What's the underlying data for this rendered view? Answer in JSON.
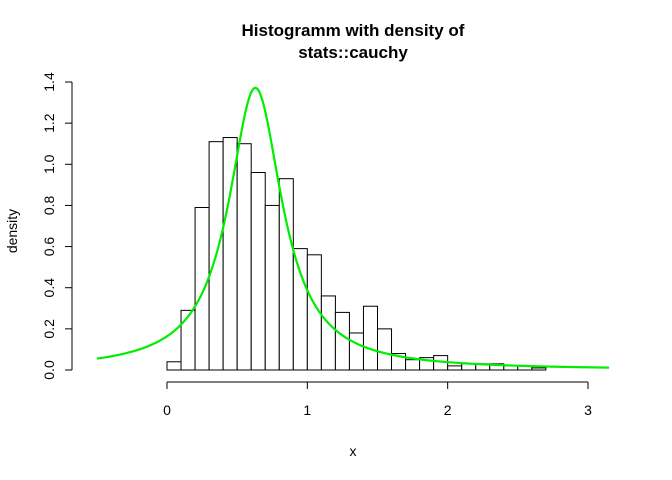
{
  "chart_data": {
    "type": "bar",
    "title_line1": "Histogramm with density of",
    "title_line2": "stats::cauchy",
    "xlabel": "x",
    "ylabel": "density",
    "xlim": [
      -0.5,
      3.15
    ],
    "ylim": [
      0,
      1.4
    ],
    "x_ticks": [
      "0",
      "1",
      "2",
      "3"
    ],
    "y_ticks": [
      "0.0",
      "0.2",
      "0.4",
      "0.6",
      "0.8",
      "1.0",
      "1.2",
      "1.4"
    ],
    "grid": false,
    "bin_width": 0.1,
    "histogram": {
      "bin_starts": [
        0.0,
        0.1,
        0.2,
        0.3,
        0.4,
        0.5,
        0.6,
        0.7,
        0.8,
        0.9,
        1.0,
        1.1,
        1.2,
        1.3,
        1.4,
        1.5,
        1.6,
        1.7,
        1.8,
        1.9,
        2.0,
        2.1,
        2.2,
        2.3,
        2.4,
        2.5,
        2.6
      ],
      "values": [
        0.04,
        0.29,
        0.79,
        1.11,
        1.13,
        1.1,
        0.96,
        0.8,
        0.93,
        0.59,
        0.56,
        0.36,
        0.28,
        0.18,
        0.31,
        0.2,
        0.08,
        0.05,
        0.06,
        0.07,
        0.02,
        0.03,
        0.03,
        0.03,
        0.02,
        0.02,
        0.01
      ],
      "fill": "#ffffff",
      "stroke": "#000000"
    },
    "density_curve": {
      "type": "line",
      "distribution": "cauchy",
      "location": 0.63,
      "scale": 0.232,
      "x_range": [
        -0.5,
        3.15
      ],
      "color": "#00ee00"
    }
  }
}
